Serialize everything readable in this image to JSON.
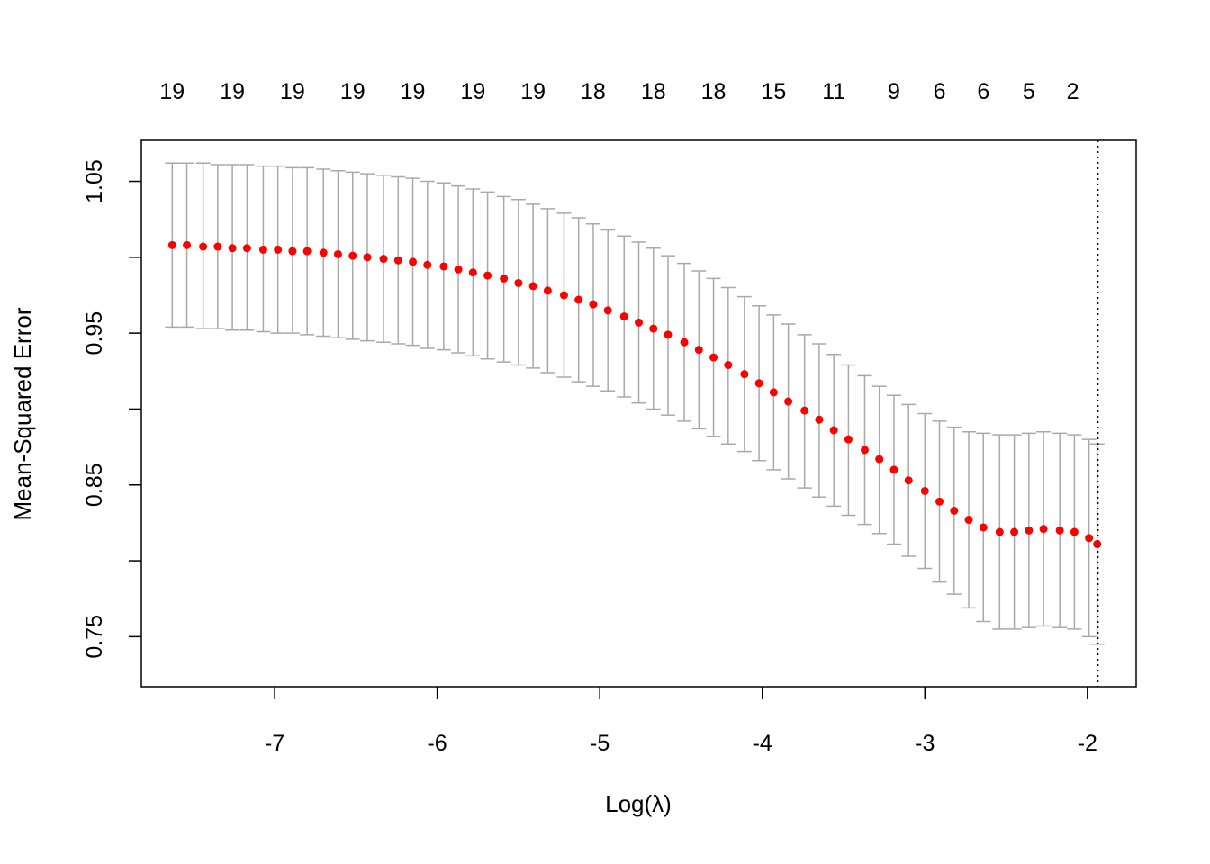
{
  "chart_data": {
    "type": "scatter",
    "xlabel": "Log(λ)",
    "ylabel": "Mean-Squared Error",
    "xlim": [
      -7.82,
      -1.7
    ],
    "ylim": [
      0.717,
      1.077
    ],
    "x_ticks": [
      -7,
      -6,
      -5,
      -4,
      -3,
      -2
    ],
    "x_tick_labels": [
      "-7",
      "-6",
      "-5",
      "-4",
      "-3",
      "-2"
    ],
    "y_ticks": [
      0.75,
      0.8,
      0.85,
      0.9,
      0.95,
      1.0,
      1.05
    ],
    "y_tick_labels": [
      "0.75",
      "",
      "0.85",
      "",
      "0.95",
      "",
      "1.05"
    ],
    "top_axis": {
      "positions": [
        -7.63,
        -7.26,
        -6.89,
        -6.52,
        -6.15,
        -5.78,
        -5.41,
        -5.04,
        -4.67,
        -4.3,
        -3.93,
        -3.56,
        -3.19,
        -2.91,
        -2.64,
        -2.36,
        -2.09
      ],
      "labels": [
        "19",
        "19",
        "19",
        "19",
        "19",
        "19",
        "19",
        "18",
        "18",
        "18",
        "15",
        "11",
        "9",
        "6",
        "6",
        "5",
        "2"
      ]
    },
    "vline_x": -1.935,
    "point_color": "#ff0000",
    "errorbar_color": "#a9a9a9",
    "series": [
      {
        "x": [
          -7.63,
          -7.54,
          -7.44,
          -7.35,
          -7.26,
          -7.17,
          -7.07,
          -6.98,
          -6.89,
          -6.8,
          -6.7,
          -6.61,
          -6.52,
          -6.43,
          -6.33,
          -6.24,
          -6.15,
          -6.06,
          -5.96,
          -5.87,
          -5.78,
          -5.69,
          -5.59,
          -5.5,
          -5.41,
          -5.32,
          -5.22,
          -5.13,
          -5.04,
          -4.95,
          -4.85,
          -4.76,
          -4.67,
          -4.58,
          -4.48,
          -4.39,
          -4.3,
          -4.21,
          -4.11,
          -4.02,
          -3.93,
          -3.84,
          -3.74,
          -3.65,
          -3.56,
          -3.47,
          -3.37,
          -3.28,
          -3.19,
          -3.1,
          -3.0,
          -2.91,
          -2.82,
          -2.73,
          -2.64,
          -2.54,
          -2.45,
          -2.36,
          -2.27,
          -2.17,
          -2.08,
          -1.99,
          -1.94
        ],
        "y": [
          1.008,
          1.008,
          1.007,
          1.007,
          1.006,
          1.006,
          1.005,
          1.005,
          1.004,
          1.004,
          1.003,
          1.002,
          1.001,
          1.0,
          0.999,
          0.998,
          0.997,
          0.995,
          0.994,
          0.992,
          0.99,
          0.988,
          0.986,
          0.983,
          0.981,
          0.978,
          0.975,
          0.972,
          0.969,
          0.965,
          0.961,
          0.957,
          0.953,
          0.949,
          0.944,
          0.939,
          0.934,
          0.929,
          0.923,
          0.917,
          0.911,
          0.905,
          0.899,
          0.893,
          0.886,
          0.88,
          0.873,
          0.867,
          0.86,
          0.853,
          0.846,
          0.839,
          0.833,
          0.827,
          0.822,
          0.819,
          0.819,
          0.82,
          0.821,
          0.82,
          0.819,
          0.815,
          0.811
        ],
        "upper": [
          1.062,
          1.062,
          1.062,
          1.061,
          1.061,
          1.061,
          1.06,
          1.06,
          1.059,
          1.059,
          1.058,
          1.057,
          1.056,
          1.055,
          1.054,
          1.053,
          1.052,
          1.05,
          1.049,
          1.047,
          1.045,
          1.043,
          1.04,
          1.038,
          1.035,
          1.032,
          1.029,
          1.026,
          1.022,
          1.018,
          1.014,
          1.01,
          1.006,
          1.001,
          0.996,
          0.991,
          0.986,
          0.98,
          0.974,
          0.968,
          0.962,
          0.956,
          0.949,
          0.943,
          0.936,
          0.929,
          0.922,
          0.915,
          0.909,
          0.903,
          0.897,
          0.892,
          0.888,
          0.885,
          0.884,
          0.883,
          0.883,
          0.884,
          0.885,
          0.884,
          0.883,
          0.88,
          0.877
        ],
        "lower": [
          0.954,
          0.954,
          0.953,
          0.953,
          0.952,
          0.952,
          0.951,
          0.95,
          0.95,
          0.949,
          0.948,
          0.947,
          0.946,
          0.945,
          0.944,
          0.943,
          0.942,
          0.94,
          0.939,
          0.937,
          0.935,
          0.933,
          0.931,
          0.929,
          0.927,
          0.924,
          0.921,
          0.918,
          0.915,
          0.912,
          0.908,
          0.904,
          0.9,
          0.896,
          0.892,
          0.887,
          0.882,
          0.877,
          0.872,
          0.866,
          0.86,
          0.854,
          0.848,
          0.842,
          0.836,
          0.83,
          0.824,
          0.818,
          0.811,
          0.803,
          0.795,
          0.786,
          0.778,
          0.769,
          0.76,
          0.755,
          0.755,
          0.756,
          0.757,
          0.756,
          0.755,
          0.75,
          0.745
        ]
      }
    ]
  }
}
